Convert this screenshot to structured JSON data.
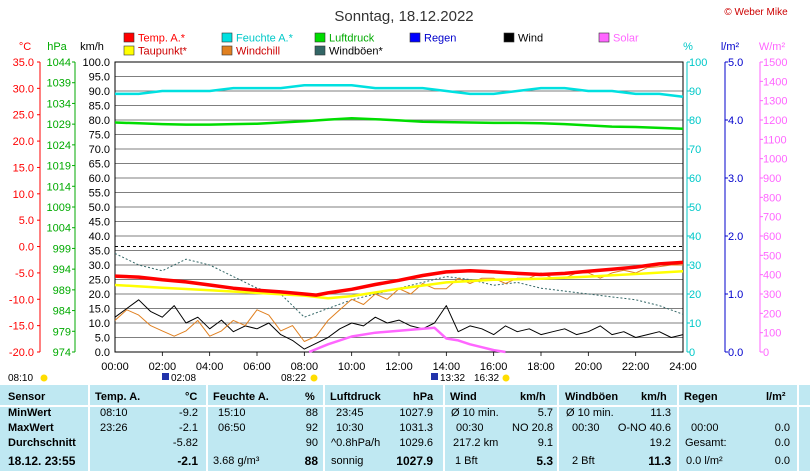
{
  "title": "Sonntag, 18.12.2022",
  "copyright": "© Weber Mike",
  "colors": {
    "temp": "#ff0000",
    "humidity": "#00e0e0",
    "pressure": "#00dd00",
    "dewpoint": "#ffff00",
    "windchill": "#e08020",
    "gust": "#336666",
    "rain": "#0000ff",
    "wind": "#000000",
    "solar": "#ff66ff",
    "table_bg": "#bfe8f2"
  },
  "legend": [
    {
      "label": "Temp. A.*",
      "color": "#ff0000",
      "text_color": "#ff0000"
    },
    {
      "label": "Feuchte A.*",
      "color": "#00e0e0",
      "text_color": "#00c8c8"
    },
    {
      "label": "Luftdruck",
      "color": "#00dd00",
      "text_color": "#00aa00"
    },
    {
      "label": "Regen",
      "color": "#0000ff",
      "text_color": "#0000cc"
    },
    {
      "label": "Wind",
      "color": "#000000",
      "text_color": "#000000"
    },
    {
      "label": "Solar",
      "color": "#ff66ff",
      "text_color": "#ff66ff"
    },
    {
      "label": "Taupunkt*",
      "color": "#ffff00",
      "text_color": "#cc0000"
    },
    {
      "label": "Windchill",
      "color": "#e08020",
      "text_color": "#cc0000"
    },
    {
      "label": "Windböen*",
      "color": "#336666",
      "text_color": "#000000"
    }
  ],
  "axis_units": {
    "temp": "°C",
    "pressure": "hPa",
    "wind": "km/h",
    "humidity": "%",
    "rain": "l/m²",
    "solar": "W/m²"
  },
  "markers": {
    "sunrise": "08:10",
    "solar_noon": "02:08",
    "sunset_marker": "08:22",
    "moonrise": "13:32",
    "moonset": "16:32"
  },
  "chart_data": {
    "type": "line",
    "x_axis": {
      "label": "",
      "ticks": [
        "00:00",
        "02:00",
        "04:00",
        "06:00",
        "08:00",
        "10:00",
        "12:00",
        "14:00",
        "16:00",
        "18:00",
        "20:00",
        "22:00",
        "24:00"
      ],
      "range": [
        0,
        24
      ]
    },
    "y_axes": {
      "temp": {
        "unit": "°C",
        "range": [
          -20,
          35
        ],
        "ticks": [
          "35.0",
          "30.0",
          "25.0",
          "20.0",
          "15.0",
          "10.0",
          "5.0",
          "0.0",
          "-5.0",
          "-10.0",
          "-15.0",
          "-20.0"
        ]
      },
      "pressure": {
        "unit": "hPa",
        "range": [
          974,
          1044
        ],
        "ticks": [
          "1044",
          "1039",
          "1034",
          "1029",
          "1024",
          "1019",
          "1014",
          "1009",
          "1004",
          "999",
          "994",
          "989",
          "984",
          "979",
          "974"
        ]
      },
      "wind": {
        "unit": "km/h",
        "range": [
          0,
          100
        ],
        "ticks": [
          "100.0",
          "95.0",
          "90.0",
          "85.0",
          "80.0",
          "75.0",
          "70.0",
          "65.0",
          "60.0",
          "55.0",
          "50.0",
          "45.0",
          "40.0",
          "35.0",
          "30.0",
          "25.0",
          "20.0",
          "15.0",
          "10.0",
          "5.0",
          "0.0"
        ]
      },
      "humidity": {
        "unit": "%",
        "range": [
          0,
          100
        ],
        "ticks": [
          "100",
          "90",
          "80",
          "70",
          "60",
          "50",
          "40",
          "30",
          "20",
          "10",
          "0"
        ]
      },
      "rain": {
        "unit": "l/m²",
        "range": [
          0,
          5
        ],
        "ticks": [
          "5.0",
          "4.0",
          "3.0",
          "2.0",
          "1.0",
          "0.0"
        ]
      },
      "solar": {
        "unit": "W/m²",
        "range": [
          0,
          1500
        ],
        "ticks": [
          "1500",
          "1400",
          "1300",
          "1200",
          "1100",
          "1000",
          "900",
          "800",
          "700",
          "600",
          "500",
          "400",
          "300",
          "200",
          "100",
          "0"
        ]
      }
    },
    "series": [
      {
        "name": "Temp. A.*",
        "axis": "temp",
        "x": [
          0,
          1,
          2,
          3,
          4,
          5,
          6,
          7,
          8,
          8.5,
          9,
          10,
          11,
          12,
          13,
          14,
          15,
          16,
          17,
          18,
          19,
          20,
          21,
          22,
          23,
          24
        ],
        "y": [
          -5.6,
          -5.8,
          -6.3,
          -6.7,
          -7.3,
          -7.9,
          -8.3,
          -8.6,
          -9.0,
          -9.2,
          -8.8,
          -8.1,
          -7.2,
          -6.4,
          -5.5,
          -4.8,
          -4.6,
          -4.8,
          -5.1,
          -5.3,
          -5.1,
          -4.7,
          -4.3,
          -3.9,
          -3.3,
          -3.0
        ]
      },
      {
        "name": "Taupunkt*",
        "axis": "temp",
        "x": [
          0,
          2,
          4,
          6,
          8,
          9,
          10,
          12,
          14,
          16,
          18,
          20,
          22,
          24
        ],
        "y": [
          -7.3,
          -7.8,
          -8.3,
          -8.8,
          -9.3,
          -9.8,
          -9.4,
          -8.0,
          -6.8,
          -6.3,
          -6.1,
          -5.7,
          -5.2,
          -4.7
        ]
      },
      {
        "name": "Windchill",
        "axis": "temp",
        "x": [
          0,
          0.5,
          1,
          1.5,
          2,
          2.5,
          3,
          3.5,
          4,
          4.5,
          5,
          5.5,
          6,
          6.5,
          7,
          7.5,
          8,
          8.5,
          9,
          9.5,
          10,
          10.5,
          11,
          11.5,
          12,
          12.5,
          13,
          13.5,
          14,
          14.5,
          15,
          15.5,
          16,
          16.5,
          17,
          17.5,
          18,
          18.5,
          19,
          19.5,
          20,
          20.5,
          21,
          21.5,
          22,
          22.5,
          23,
          23.5,
          24
        ],
        "y": [
          -14,
          -12,
          -13,
          -15,
          -16,
          -17,
          -16,
          -14,
          -17,
          -16,
          -14,
          -15,
          -12,
          -13,
          -16,
          -15,
          -18,
          -17,
          -14,
          -12,
          -10,
          -11,
          -9,
          -10,
          -8,
          -9,
          -7,
          -8,
          -8,
          -6,
          -7,
          -6,
          -6,
          -7,
          -6,
          -6,
          -5,
          -6,
          -6,
          -5,
          -5,
          -6,
          -5,
          -4.5,
          -5,
          -4,
          -3.8,
          -3.5,
          -3.5
        ]
      },
      {
        "name": "Feuchte A.*",
        "axis": "humidity",
        "x": [
          0,
          1,
          2,
          3,
          4,
          5,
          6,
          7,
          8,
          9,
          10,
          11,
          12,
          13,
          14,
          15,
          16,
          17,
          18,
          19,
          20,
          21,
          22,
          23,
          24
        ],
        "y": [
          89,
          89,
          90,
          90,
          90,
          91,
          91,
          91,
          92,
          92,
          92,
          91,
          91,
          91,
          90,
          89,
          89,
          90,
          91,
          91,
          90,
          90,
          89,
          89,
          88
        ]
      },
      {
        "name": "Luftdruck",
        "axis": "pressure",
        "x": [
          0,
          1,
          2,
          3,
          4,
          5,
          6,
          7,
          8,
          9,
          10,
          11,
          12,
          13,
          14,
          15,
          16,
          17,
          18,
          19,
          20,
          21,
          22,
          23,
          24
        ],
        "y": [
          1029.4,
          1029.2,
          1029.0,
          1028.9,
          1028.9,
          1029.0,
          1029.1,
          1029.4,
          1029.7,
          1030.1,
          1030.4,
          1030.2,
          1029.9,
          1029.6,
          1029.5,
          1029.4,
          1029.3,
          1029.3,
          1029.2,
          1029.0,
          1028.7,
          1028.4,
          1028.3,
          1028.1,
          1027.9
        ]
      },
      {
        "name": "Wind",
        "axis": "wind",
        "x": [
          0,
          0.5,
          1,
          1.5,
          2,
          2.5,
          3,
          3.5,
          4,
          4.5,
          5,
          5.5,
          6,
          6.5,
          7,
          7.5,
          8,
          8.5,
          9,
          9.5,
          10,
          10.5,
          11,
          11.5,
          12,
          12.5,
          13,
          13.5,
          14,
          14.5,
          15,
          15.5,
          16,
          16.5,
          17,
          17.5,
          18,
          18.5,
          19,
          19.5,
          20,
          20.5,
          21,
          21.5,
          22,
          22.5,
          23,
          23.5,
          24
        ],
        "y": [
          12,
          15,
          18,
          14,
          12,
          16,
          10,
          12,
          8,
          11,
          7,
          9,
          8,
          10,
          6,
          4,
          1,
          3,
          5,
          8,
          10,
          9,
          12,
          10,
          11,
          9,
          8,
          10,
          16,
          7,
          9,
          8,
          6,
          9,
          7,
          8,
          6,
          7,
          8,
          6,
          7,
          9,
          6,
          7,
          5,
          6,
          7,
          5,
          6
        ]
      },
      {
        "name": "Windböen*",
        "axis": "wind",
        "x": [
          0,
          1,
          2,
          3,
          4,
          5,
          6,
          7,
          8,
          9,
          10,
          11,
          12,
          13,
          14,
          15,
          16,
          17,
          18,
          19,
          20,
          21,
          22,
          23,
          24
        ],
        "y": [
          34,
          30,
          28,
          32,
          30,
          26,
          22,
          20,
          12,
          15,
          18,
          20,
          22,
          24,
          26,
          25,
          23,
          24,
          22,
          21,
          20,
          19,
          18,
          16,
          13
        ]
      },
      {
        "name": "Solar",
        "axis": "solar",
        "x": [
          8.2,
          9,
          10,
          11,
          12,
          13,
          13.5,
          14,
          14.5,
          15,
          15.5,
          16,
          16.5
        ],
        "y": [
          0,
          40,
          80,
          100,
          110,
          120,
          125,
          70,
          60,
          40,
          25,
          10,
          0
        ]
      }
    ]
  },
  "table": {
    "columns": [
      {
        "title": "Sensor"
      },
      {
        "title": "Temp. A.",
        "unit": "°C"
      },
      {
        "title": "Feuchte A.",
        "unit": "%"
      },
      {
        "title": "Luftdruck",
        "unit": "hPa"
      },
      {
        "title": "Wind",
        "unit": "km/h"
      },
      {
        "title": "Windböen",
        "unit": "km/h"
      },
      {
        "title": "Regen",
        "unit": "l/m²"
      }
    ],
    "row_labels": [
      "MinWert",
      "MaxWert",
      "Durchschnitt",
      "18.12. 23:55"
    ],
    "temp": [
      [
        "08:10",
        "-9.2"
      ],
      [
        "23:26",
        "-2.1"
      ],
      [
        "",
        "-5.82"
      ],
      [
        "",
        "-2.1"
      ]
    ],
    "hum": [
      [
        "15:10",
        "88"
      ],
      [
        "06:50",
        "92"
      ],
      [
        "",
        "90"
      ],
      [
        "3.68 g/m³",
        "88"
      ]
    ],
    "press": [
      [
        "23:45",
        "1027.9"
      ],
      [
        "10:30",
        "1031.3"
      ],
      [
        "^0.8hPa/h",
        "1029.6"
      ],
      [
        "sonnig",
        "1027.9"
      ]
    ],
    "wind": [
      [
        "Ø 10 min.",
        "5.7"
      ],
      [
        "00:30",
        "NO 20.8"
      ],
      [
        "217.2 km",
        "9.1"
      ],
      [
        "1 Bft",
        "5.3"
      ]
    ],
    "gust": [
      [
        "Ø 10 min.",
        "11.3"
      ],
      [
        "00:30",
        "O-NO 40.6"
      ],
      [
        "",
        "19.2"
      ],
      [
        "2 Bft",
        "11.3"
      ]
    ],
    "rain": [
      [
        "",
        ""
      ],
      [
        "00:00",
        "0.0"
      ],
      [
        "Gesamt:",
        "0.0"
      ],
      [
        "0.0 l/m²",
        "0.0"
      ]
    ]
  }
}
